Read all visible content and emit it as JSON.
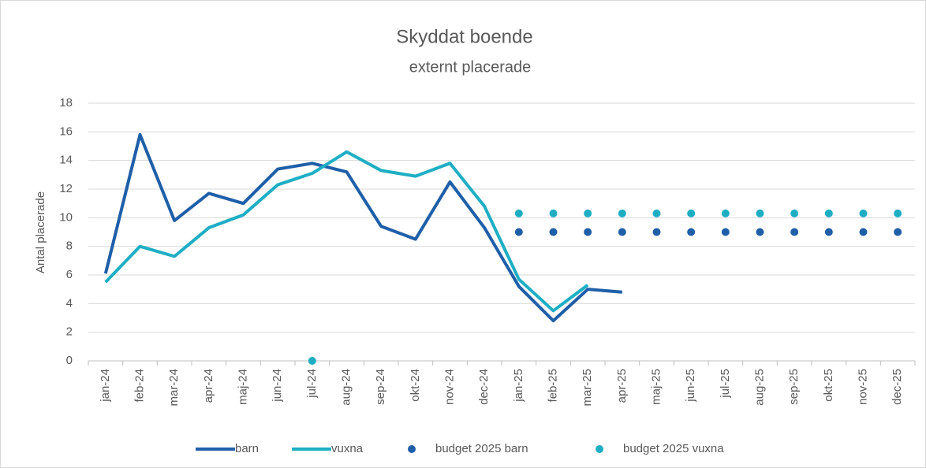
{
  "chart_data": {
    "type": "line",
    "title": "Skyddat boende",
    "subtitle": "externt placerade",
    "y_label": "Antal placerade",
    "categories": [
      "jan-24",
      "feb-24",
      "mar-24",
      "apr-24",
      "maj-24",
      "jun-24",
      "jul-24",
      "aug-24",
      "sep-24",
      "okt-24",
      "nov-24",
      "dec-24",
      "jan-25",
      "feb-25",
      "mar-25",
      "apr-25",
      "maj-25",
      "jun-25",
      "jul-25",
      "aug-25",
      "sep-25",
      "okt-25",
      "nov-25",
      "dec-25"
    ],
    "series": [
      {
        "name": "barn",
        "type": "line",
        "color": "#1f5fa8",
        "values": [
          6.1,
          15.8,
          9.8,
          11.7,
          11.0,
          13.4,
          13.8,
          13.2,
          9.4,
          8.5,
          12.5,
          9.3,
          5.2,
          2.8,
          5.0,
          4.8,
          null,
          null,
          null,
          null,
          null,
          null,
          null,
          null
        ]
      },
      {
        "name": "vuxna",
        "type": "line",
        "color": "#1eaec4",
        "values": [
          5.5,
          8.0,
          7.3,
          9.3,
          10.2,
          12.3,
          13.1,
          14.6,
          13.3,
          12.9,
          13.8,
          10.8,
          5.7,
          3.5,
          5.3,
          null,
          null,
          null,
          null,
          null,
          null,
          null,
          null,
          null
        ]
      },
      {
        "name": "budget 2025 barn",
        "type": "scatter",
        "color": "#1f5fa8",
        "values": [
          null,
          null,
          null,
          null,
          null,
          null,
          null,
          null,
          null,
          null,
          null,
          null,
          9,
          9,
          9,
          9,
          9,
          9,
          9,
          9,
          9,
          9,
          9,
          9
        ]
      },
      {
        "name": "budget 2025 vuxna",
        "type": "scatter",
        "color": "#1eaec4",
        "values": [
          null,
          null,
          null,
          null,
          null,
          null,
          0,
          null,
          null,
          null,
          null,
          null,
          10.3,
          10.3,
          10.3,
          10.3,
          10.3,
          10.3,
          10.3,
          10.3,
          10.3,
          10.3,
          10.3,
          10.3
        ]
      }
    ],
    "ylim": [
      0,
      18
    ],
    "yticks": [
      0,
      2,
      4,
      6,
      8,
      10,
      12,
      14,
      16,
      18
    ],
    "grid": true,
    "legend": "bottom"
  }
}
